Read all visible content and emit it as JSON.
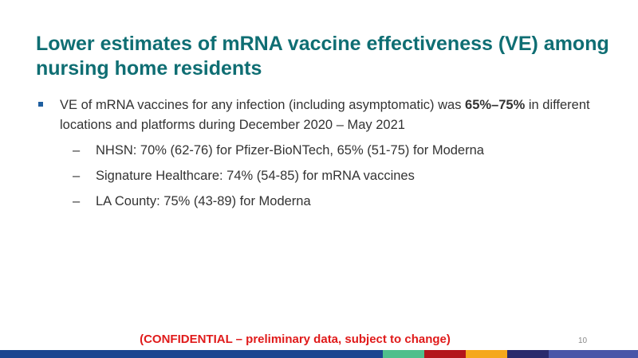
{
  "title": "Lower estimates of mRNA vaccine effectiveness (VE) among nursing home residents",
  "bullet": {
    "text_before": "VE of mRNA vaccines for any infection (including asymptomatic) was ",
    "bold": "65%–75%",
    "text_after": " in different locations and platforms during December 2020 – May 2021",
    "sub": [
      "NHSN: 70% (62-76) for Pfizer-BioNTech, 65% (51-75) for Moderna",
      "Signature Healthcare: 74% (54-85) for mRNA vaccines",
      "LA County: 75% (43-89) for Moderna"
    ],
    "dash": "–"
  },
  "footer": {
    "confidential": "(CONFIDENTIAL – preliminary data, subject to change)",
    "page_number": "10"
  },
  "colors": {
    "title": "#0f6e73",
    "confidential": "#e01a1a",
    "bar": [
      "#1b4590",
      "#4fbf8c",
      "#b3151b",
      "#f5a81c",
      "#2a2a6c",
      "#4a56a8"
    ]
  }
}
